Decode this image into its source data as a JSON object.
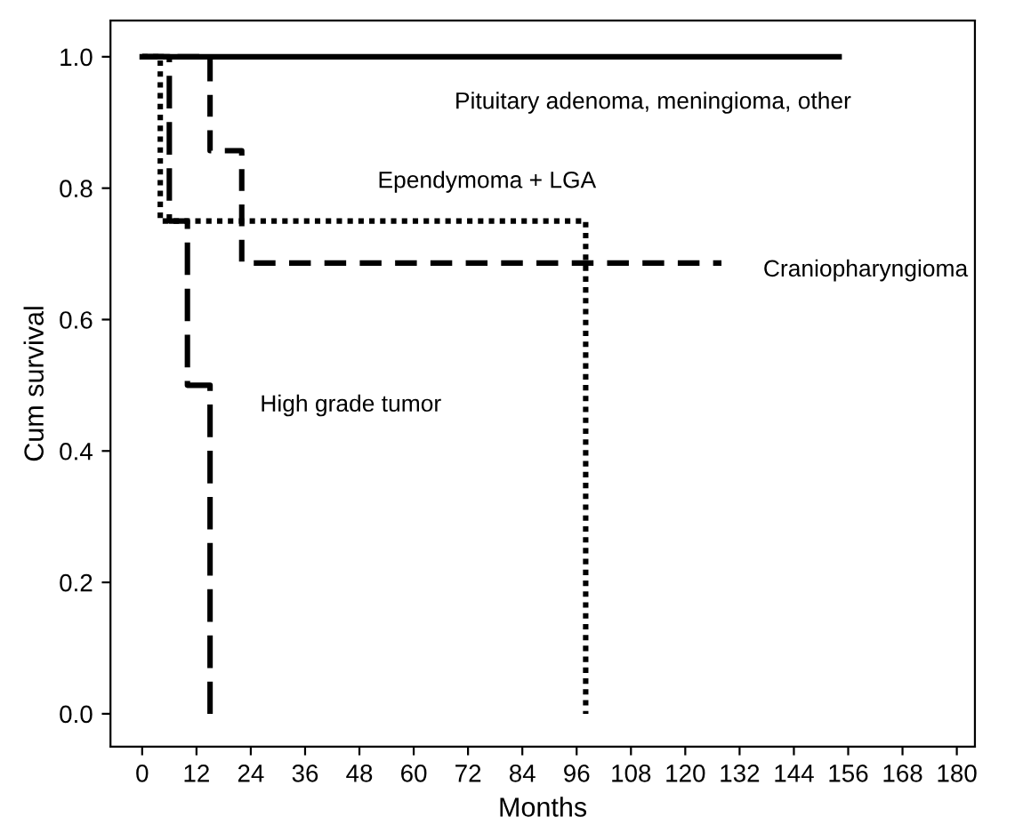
{
  "chart_data": {
    "type": "step",
    "xlabel": "Months",
    "ylabel": "Cum survival",
    "xlim": [
      -7,
      184
    ],
    "ylim": [
      -0.05,
      1.055
    ],
    "xticks": [
      0,
      12,
      24,
      36,
      48,
      60,
      72,
      84,
      96,
      108,
      120,
      132,
      144,
      156,
      168,
      180
    ],
    "yticks": [
      {
        "value": 0,
        "label": "0.0"
      },
      {
        "value": 0.2,
        "label": "0.2"
      },
      {
        "value": 0.4,
        "label": "0.4"
      },
      {
        "value": 0.6,
        "label": "0.6"
      },
      {
        "value": 0.8,
        "label": "0.8"
      },
      {
        "value": 1,
        "label": "1.0"
      }
    ],
    "series": [
      {
        "name": "Pituitary adenoma, meningioma, other",
        "color": "#000000",
        "line_style": "solid",
        "x": [
          0,
          154
        ],
        "values": [
          1.0,
          1.0
        ]
      },
      {
        "name": "Ependymoma + LGA",
        "color": "#000000",
        "line_style": "dotted",
        "x": [
          0,
          4,
          98,
          98
        ],
        "values": [
          1.0,
          0.75,
          0.0,
          0.0
        ]
      },
      {
        "name": "Craniopharyngioma",
        "color": "#000000",
        "line_style": "dashed",
        "x": [
          0,
          15,
          22,
          128
        ],
        "values": [
          1.0,
          0.857,
          0.686,
          0.686
        ]
      },
      {
        "name": "High grade tumor",
        "color": "#000000",
        "line_style": "dashed",
        "x": [
          0,
          6,
          10,
          15,
          15
        ],
        "values": [
          1.0,
          0.75,
          0.5,
          0.0,
          0.0
        ]
      }
    ],
    "grid": false,
    "legend": false
  }
}
